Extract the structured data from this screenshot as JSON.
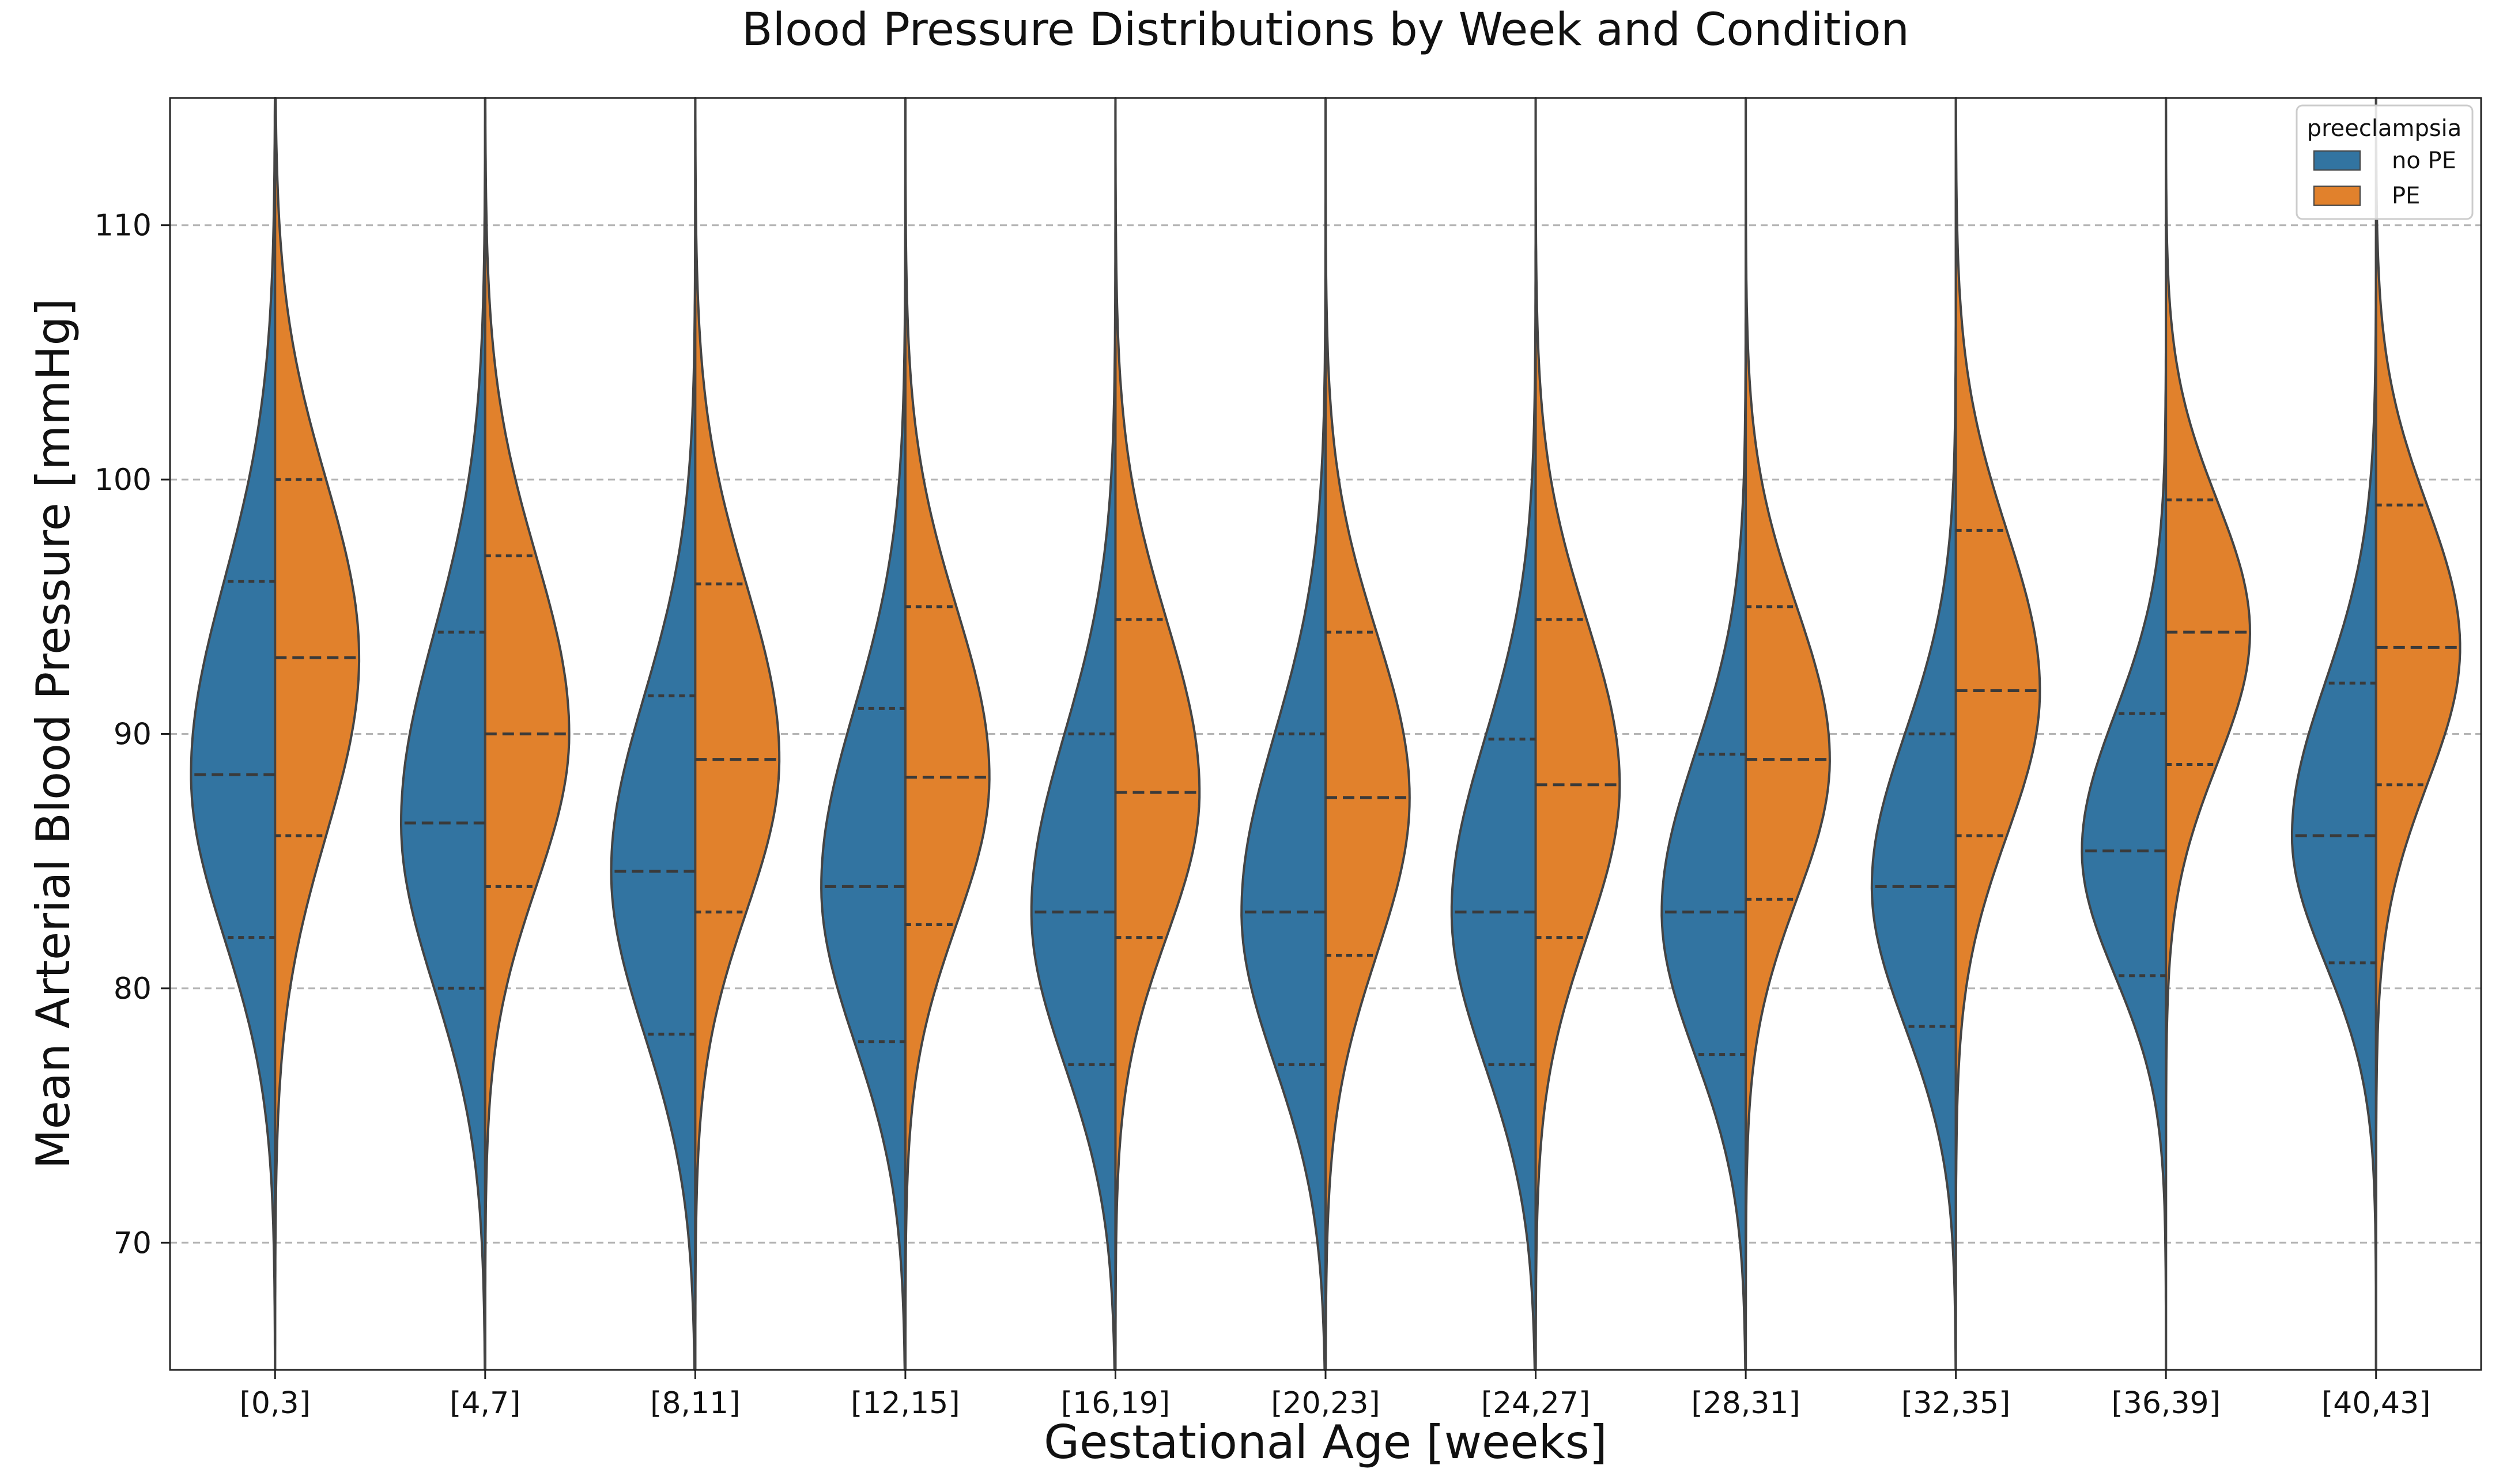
{
  "chart_data": {
    "type": "violin",
    "title": "Blood Pressure Distributions by Week and Condition",
    "xlabel": "Gestational Age [weeks]",
    "ylabel": "Mean Arterial Blood Pressure [mmHg]",
    "ylim": [
      65,
      115
    ],
    "yticks": [
      70,
      80,
      90,
      100,
      110
    ],
    "grid": "horizontal dashed",
    "split": true,
    "inner": "quartile",
    "categories": [
      "[0,3]",
      "[4,7]",
      "[8,11]",
      "[12,15]",
      "[16,19]",
      "[20,23]",
      "[24,27]",
      "[28,31]",
      "[32,35]",
      "[36,39]",
      "[40,43]"
    ],
    "legend": {
      "title": "preeclampsia",
      "position": "top-right",
      "entries": [
        {
          "label": "no PE",
          "color": "#3274a1"
        },
        {
          "label": "PE",
          "color": "#e1812c"
        }
      ]
    },
    "series": [
      {
        "name": "no PE",
        "side": "left",
        "color": "#3274a1",
        "quartiles": [
          [
            82.0,
            88.4,
            96.0
          ],
          [
            80.0,
            86.5,
            94.0
          ],
          [
            78.2,
            84.6,
            91.5
          ],
          [
            77.9,
            84.0,
            91.0
          ],
          [
            77.0,
            83.0,
            90.0
          ],
          [
            77.0,
            83.0,
            90.0
          ],
          [
            77.0,
            83.0,
            89.8
          ],
          [
            77.4,
            83.0,
            89.2
          ],
          [
            78.5,
            84.0,
            90.0
          ],
          [
            80.5,
            85.4,
            90.8
          ],
          [
            81.0,
            86.0,
            92.0
          ]
        ],
        "range": [
          [
            65.0,
            115.0
          ],
          [
            65.0,
            115.0
          ],
          [
            65.0,
            115.0
          ],
          [
            65.0,
            115.0
          ],
          [
            65.0,
            115.0
          ],
          [
            65.0,
            115.0
          ],
          [
            65.0,
            115.0
          ],
          [
            65.0,
            115.0
          ],
          [
            65.0,
            115.0
          ],
          [
            65.0,
            115.0
          ],
          [
            65.0,
            115.0
          ]
        ]
      },
      {
        "name": "PE",
        "side": "right",
        "color": "#e1812c",
        "quartiles": [
          [
            86.0,
            93.0,
            100.0
          ],
          [
            84.0,
            90.0,
            97.0
          ],
          [
            83.0,
            89.0,
            95.9
          ],
          [
            82.5,
            88.3,
            95.0
          ],
          [
            82.0,
            87.7,
            94.5
          ],
          [
            81.3,
            87.5,
            94.0
          ],
          [
            82.0,
            88.0,
            94.5
          ],
          [
            83.5,
            89.0,
            95.0
          ],
          [
            86.0,
            91.7,
            98.0
          ],
          [
            88.8,
            94.0,
            99.2
          ],
          [
            88.0,
            93.4,
            99.0
          ]
        ],
        "range": [
          [
            65.0,
            115.0
          ],
          [
            65.0,
            115.0
          ],
          [
            65.0,
            115.0
          ],
          [
            65.0,
            115.0
          ],
          [
            65.0,
            115.0
          ],
          [
            65.0,
            115.0
          ],
          [
            65.0,
            115.0
          ],
          [
            65.0,
            115.0
          ],
          [
            65.0,
            115.0
          ],
          [
            65.0,
            115.0
          ],
          [
            65.0,
            115.0
          ]
        ]
      }
    ]
  }
}
